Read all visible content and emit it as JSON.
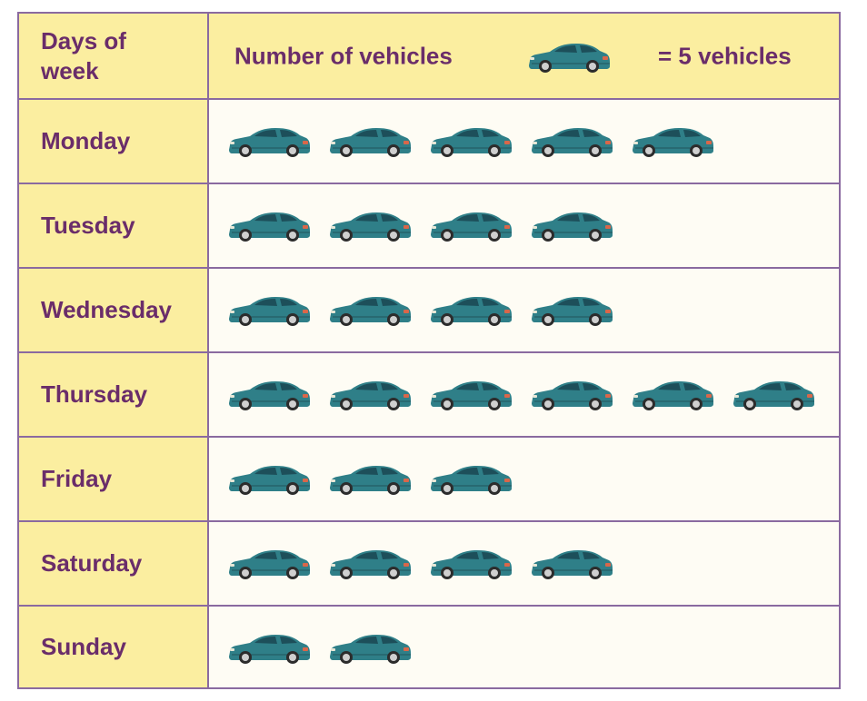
{
  "header": {
    "category_label": "Days of week",
    "category_label_lines": [
      "Days of",
      "week"
    ],
    "value_label": "Number of vehicles",
    "key_text": "= 5 vehicles",
    "key_icon": "car-icon"
  },
  "colors": {
    "car_body": "#2f7f88",
    "header_bg": "#fbeea0",
    "label_text": "#6a2d6a",
    "grid": "#8a6aa0"
  },
  "chart_data": {
    "type": "bar",
    "subtype": "pictograph",
    "symbol": "car",
    "symbol_value": 5,
    "xlabel": "Days of week",
    "ylabel": "Number of vehicles",
    "categories": [
      "Monday",
      "Tuesday",
      "Wednesday",
      "Thursday",
      "Friday",
      "Saturday",
      "Sunday"
    ],
    "symbol_counts": [
      5,
      4,
      4,
      6,
      3,
      4,
      2
    ],
    "values": [
      25,
      20,
      20,
      30,
      15,
      20,
      10
    ]
  }
}
